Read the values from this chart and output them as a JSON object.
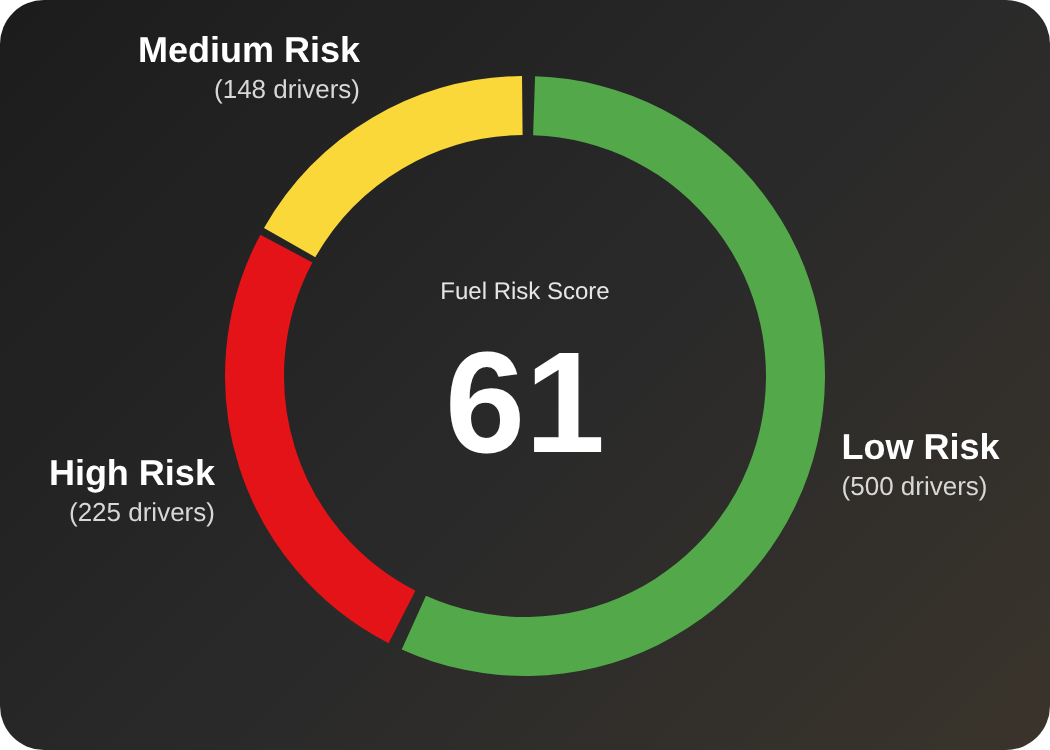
{
  "chart_data": {
    "type": "donut",
    "title": "Fuel Risk Score",
    "annotations": [
      "61"
    ],
    "categories": [
      "Low Risk",
      "High Risk",
      "Medium Risk"
    ],
    "values": [
      500,
      225,
      148
    ],
    "value_labels": [
      "(500 drivers)",
      "(225 drivers)",
      "(148 drivers)"
    ],
    "colors": [
      "#53a94a",
      "#e41318",
      "#fbd83a"
    ],
    "legend": false
  }
}
